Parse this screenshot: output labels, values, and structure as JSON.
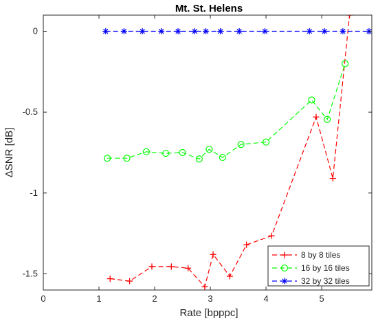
{
  "chart_data": {
    "type": "line",
    "title": "Mt. St. Helens",
    "xlabel": "Rate [bpppc]",
    "ylabel": "ΔSNR [dB]",
    "xlim": [
      0,
      5.9
    ],
    "ylim": [
      -1.6,
      0.1
    ],
    "xticks": [
      0,
      1,
      2,
      3,
      4,
      5
    ],
    "xtick_labels": [
      "0",
      "1",
      "2",
      "3",
      "4",
      "5"
    ],
    "yticks": [
      -1.5,
      -1,
      -0.5,
      0
    ],
    "ytick_labels": [
      "-1.5",
      "-1",
      "-0.5",
      "0"
    ],
    "grid": false,
    "legend_position": "bottom-right",
    "series": [
      {
        "name": "8 by 8 tiles",
        "color": "#ff0000",
        "marker": "plus",
        "x": [
          1.2,
          1.55,
          1.95,
          2.3,
          2.6,
          2.9,
          3.05,
          3.35,
          3.65,
          4.1,
          4.9,
          5.2,
          5.5
        ],
        "y": [
          -1.53,
          -1.545,
          -1.455,
          -1.455,
          -1.465,
          -1.58,
          -1.38,
          -1.515,
          -1.32,
          -1.265,
          -0.53,
          -0.91,
          0.1
        ]
      },
      {
        "name": "16 by 16 tiles",
        "color": "#00ff00",
        "marker": "circle",
        "x": [
          1.15,
          1.5,
          1.85,
          2.2,
          2.5,
          2.8,
          2.98,
          3.22,
          3.55,
          4.0,
          4.82,
          5.1,
          5.42
        ],
        "y": [
          -0.785,
          -0.785,
          -0.745,
          -0.755,
          -0.75,
          -0.79,
          -0.73,
          -0.78,
          -0.7,
          -0.685,
          -0.425,
          -0.545,
          -0.2
        ]
      },
      {
        "name": "32 by 32 tiles",
        "color": "#0000ff",
        "marker": "asterisk",
        "x": [
          1.12,
          1.45,
          1.78,
          2.12,
          2.42,
          2.72,
          2.92,
          3.18,
          3.52,
          3.98,
          4.78,
          5.05,
          5.38,
          5.85
        ],
        "y": [
          0,
          0,
          0,
          0,
          0,
          0,
          0,
          0,
          0,
          0,
          0,
          0,
          0,
          0
        ]
      }
    ]
  }
}
